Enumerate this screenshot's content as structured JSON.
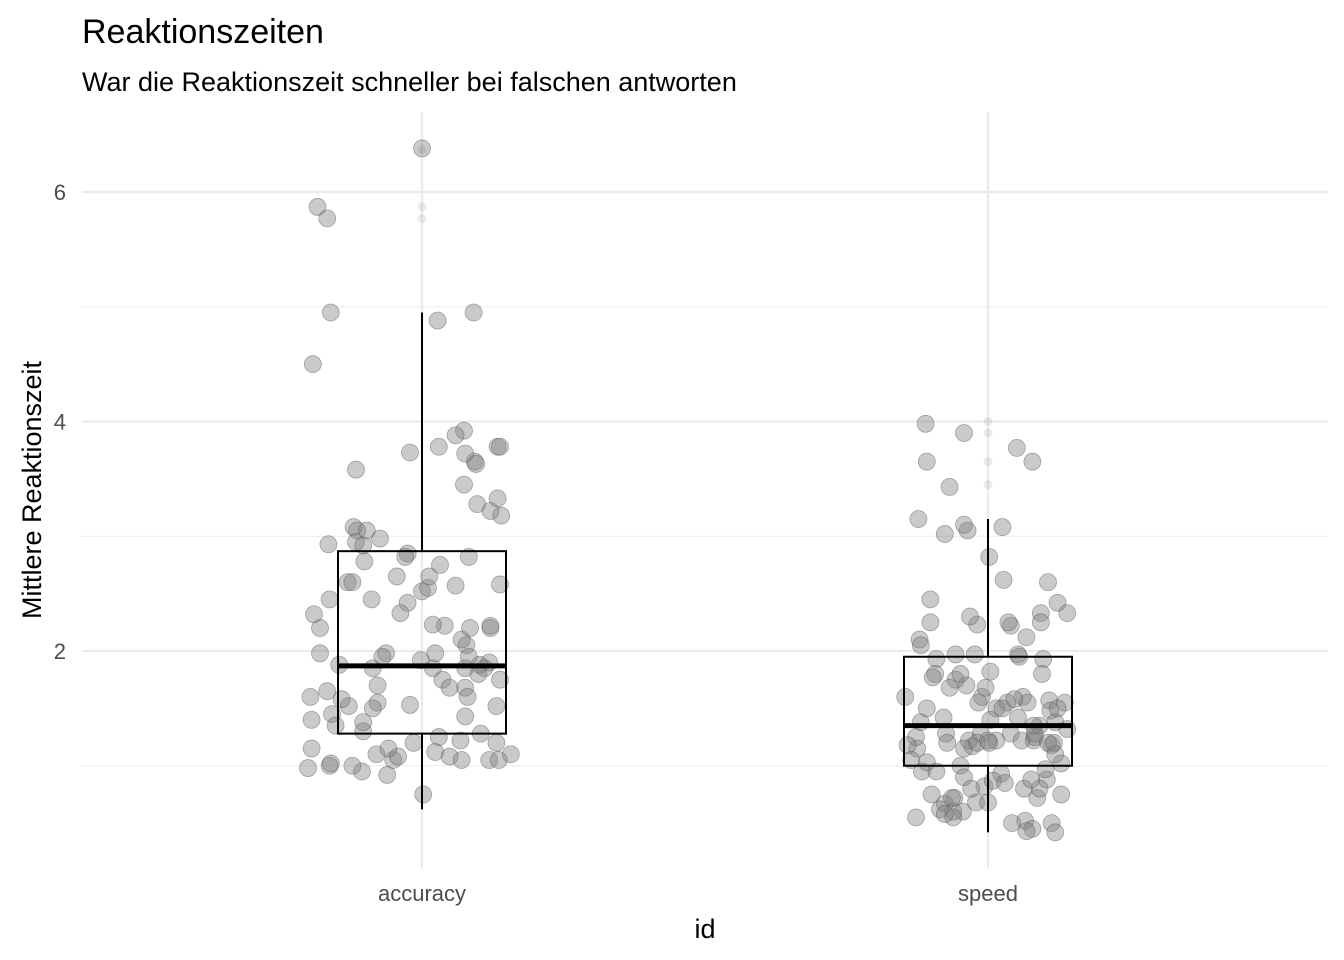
{
  "chart_data": {
    "type": "boxplot+jitter",
    "title": "Reaktionszeiten",
    "subtitle": "War die Reaktionszeit schneller bei falschen antworten",
    "xlabel": "id",
    "ylabel": "Mittlere Reaktionszeit",
    "categories": [
      "accuracy",
      "speed"
    ],
    "yticks": [
      2,
      4,
      6
    ],
    "ylim": [
      0.2,
      6.6
    ],
    "grid": true,
    "legend": "none",
    "colors": {
      "point": "#808080",
      "box": "#000000",
      "grid": "#ebebeb"
    },
    "boxes": [
      {
        "category": "accuracy",
        "min": 0.62,
        "q1": 1.28,
        "median": 1.87,
        "q3": 2.87,
        "max": 4.95,
        "outliers": [
          6.37,
          5.87,
          5.77
        ]
      },
      {
        "category": "speed",
        "min": 0.42,
        "q1": 1.0,
        "median": 1.35,
        "q3": 1.95,
        "max": 3.15,
        "outliers": [
          4.0,
          3.9,
          3.65,
          3.45
        ]
      }
    ],
    "points": [
      {
        "category": "accuracy",
        "x": [
          0.0,
          -0.87,
          -0.79,
          0.13,
          0.43,
          -0.91,
          -0.76,
          0.63,
          -0.55,
          0.35,
          0.44,
          -0.1,
          0.14,
          0.28,
          0.35,
          0.36,
          -0.57,
          0.46,
          0.66,
          0.57,
          0.45,
          -0.54,
          0.63,
          0.65,
          -0.12,
          0.39,
          0.65,
          -0.55,
          -0.62,
          -0.78,
          -0.49,
          -0.14,
          0.0,
          -0.12,
          0.05,
          -0.18,
          0.57,
          0.37,
          0.19,
          -0.77,
          0.09,
          0.48,
          -0.9,
          -0.85,
          0.56,
          -0.92,
          -0.61,
          0.11,
          -0.01,
          0.17,
          0.52,
          0.36,
          -0.37,
          0.36,
          -0.67,
          -0.75,
          0.23,
          -0.3,
          -0.41,
          -0.72,
          -0.37,
          0.32,
          0.14,
          0.11,
          -0.07,
          -0.38,
          -0.92,
          -0.77,
          0.62,
          0.23,
          0.56,
          -0.95,
          -0.76,
          -0.24,
          0.33,
          -0.2,
          -0.5,
          -0.29,
          0.01,
          0.49,
          -0.58,
          -0.49,
          -0.28,
          0.64,
          0.15,
          0.06,
          0.28,
          0.33,
          -0.58,
          0.39,
          0.4,
          -0.48,
          -0.35,
          -0.21,
          0.47,
          0.65,
          -0.85,
          -0.46,
          0.09,
          0.36,
          -0.42,
          -0.41,
          -0.1,
          -0.33,
          -0.49,
          0.62,
          -0.79,
          -0.93,
          0.38,
          -0.69,
          0.57,
          0.74
        ],
        "y": [
          6.38,
          5.87,
          5.77,
          4.88,
          4.95,
          4.5,
          4.95,
          3.78,
          3.58,
          3.92,
          3.65,
          3.73,
          3.78,
          3.88,
          3.45,
          3.72,
          3.08,
          3.28,
          3.18,
          3.22,
          3.63,
          3.05,
          3.33,
          3.78,
          2.85,
          2.82,
          2.58,
          2.95,
          2.6,
          2.93,
          2.92,
          2.82,
          2.52,
          2.42,
          2.55,
          2.33,
          2.2,
          2.05,
          2.22,
          2.45,
          1.85,
          1.88,
          2.32,
          1.98,
          1.9,
          1.4,
          1.52,
          1.98,
          1.92,
          1.75,
          1.85,
          1.85,
          1.55,
          1.68,
          1.58,
          1.45,
          1.68,
          1.98,
          1.85,
          1.35,
          1.7,
          1.22,
          1.25,
          1.12,
          1.2,
          1.1,
          1.15,
          1.0,
          1.2,
          1.08,
          1.05,
          0.98,
          1.02,
          1.05,
          1.05,
          1.08,
          0.95,
          0.92,
          0.75,
          1.28,
          1.0,
          1.3,
          1.15,
          1.05,
          2.75,
          2.65,
          2.57,
          2.1,
          2.6,
          1.95,
          2.2,
          2.78,
          2.98,
          2.65,
          1.8,
          1.75,
          2.2,
          3.05,
          2.23,
          1.43,
          2.45,
          1.5,
          1.53,
          1.95,
          1.38,
          1.52,
          1.65,
          1.6,
          1.6,
          1.88,
          2.22,
          1.1
        ]
      },
      {
        "category": "speed",
        "x": [
          -0.52,
          -0.51,
          -0.32,
          -0.2,
          0.24,
          0.37,
          -0.58,
          -0.36,
          -0.17,
          -0.2,
          0.12,
          0.01,
          0.13,
          0.5,
          0.44,
          0.58,
          0.66,
          -0.48,
          -0.48,
          -0.09,
          0.32,
          0.46,
          -0.57,
          -0.56,
          -0.43,
          -0.27,
          -0.44,
          -0.46,
          -0.18,
          0.25,
          -0.27,
          -0.32,
          -0.23,
          -0.05,
          0.16,
          0.29,
          0.02,
          0.45,
          0.33,
          0.51,
          0.52,
          0.56,
          0.64,
          -0.69,
          -0.56,
          -0.06,
          0.43,
          0.07,
          0.01,
          0.19,
          0.38,
          0.39,
          0.53,
          0.5,
          -0.59,
          -0.6,
          -0.13,
          0.28,
          -0.16,
          -0.67,
          -0.64,
          -0.51,
          -0.23,
          -0.55,
          -0.2,
          0.11,
          -0.03,
          0.04,
          0.14,
          0.3,
          0.49,
          0.41,
          0.61,
          -0.1,
          0.0,
          -0.36,
          -0.28,
          -0.21,
          -0.29,
          0.31,
          0.2,
          0.37,
          0.32,
          0.53,
          0.56,
          0.43,
          -0.43,
          -0.6,
          -0.3,
          -0.4,
          -0.29,
          -0.14,
          -0.02,
          0.25,
          0.38,
          0.39,
          0.55,
          0.58,
          0.66,
          0.61,
          -0.37,
          -0.2,
          -0.35,
          -0.51,
          -0.08,
          -0.09,
          -0.34,
          0.0,
          0.19,
          0.07,
          0.02,
          0.12,
          0.22,
          0.36,
          -0.47,
          0.48,
          -0.36,
          -0.11,
          -0.15,
          0.17,
          0.26,
          0.44,
          0.56
        ],
        "y": [
          3.98,
          3.65,
          3.43,
          3.9,
          3.77,
          3.65,
          3.15,
          3.02,
          3.05,
          3.1,
          3.08,
          2.82,
          2.62,
          2.6,
          2.33,
          2.42,
          2.33,
          2.45,
          2.25,
          2.23,
          2.12,
          1.93,
          2.1,
          2.05,
          1.93,
          1.97,
          1.8,
          1.77,
          1.7,
          1.97,
          1.75,
          1.68,
          1.8,
          1.6,
          1.55,
          1.6,
          1.82,
          1.8,
          1.55,
          1.57,
          1.48,
          1.38,
          1.55,
          1.6,
          1.38,
          1.28,
          1.35,
          1.22,
          1.2,
          1.28,
          1.22,
          1.25,
          1.18,
          1.2,
          1.15,
          1.25,
          1.17,
          1.22,
          1.22,
          1.18,
          1.05,
          1.03,
          1.0,
          0.95,
          0.9,
          0.93,
          0.82,
          0.87,
          0.85,
          0.8,
          0.88,
          0.72,
          0.75,
          0.68,
          0.68,
          0.67,
          0.72,
          0.6,
          0.6,
          0.52,
          0.5,
          0.45,
          0.43,
          0.5,
          0.42,
          0.8,
          0.95,
          0.55,
          0.72,
          0.62,
          0.55,
          0.8,
          1.68,
          1.42,
          1.35,
          1.28,
          1.2,
          1.5,
          1.32,
          1.02,
          1.42,
          1.15,
          1.28,
          1.5,
          1.55,
          1.2,
          1.2,
          1.22,
          2.22,
          1.5,
          1.4,
          1.5,
          1.58,
          0.88,
          0.75,
          0.97,
          0.58,
          1.97,
          2.3,
          2.25,
          1.95,
          2.25,
          1.1
        ]
      }
    ]
  }
}
